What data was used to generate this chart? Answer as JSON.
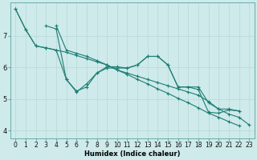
{
  "xlabel": "Humidex (Indice chaleur)",
  "bg_color": "#ceeaea",
  "line_color": "#1e7d74",
  "xlim_min": -0.5,
  "xlim_max": 23.5,
  "ylim_min": 3.75,
  "ylim_max": 8.05,
  "xticks": [
    0,
    1,
    2,
    3,
    4,
    5,
    6,
    7,
    8,
    9,
    10,
    11,
    12,
    13,
    14,
    15,
    16,
    17,
    18,
    19,
    20,
    21,
    22,
    23
  ],
  "yticks": [
    4,
    5,
    6,
    7
  ],
  "lines": [
    [
      7.85,
      7.2,
      6.68,
      6.62,
      6.55,
      6.48,
      6.38,
      6.28,
      6.18,
      6.08,
      5.92,
      5.82,
      5.72,
      5.62,
      5.52,
      5.42,
      5.32,
      5.22,
      5.12,
      4.92,
      4.68,
      4.52,
      4.42,
      4.18
    ],
    [
      7.85,
      7.2,
      6.68,
      6.62,
      6.55,
      5.62,
      5.25,
      5.38,
      5.82,
      6.02,
      6.02,
      5.98,
      6.08,
      6.35,
      6.35,
      6.08,
      5.38,
      5.38,
      5.38,
      4.88,
      4.68,
      4.68,
      4.62,
      null
    ],
    [
      null,
      null,
      null,
      7.32,
      7.22,
      5.62,
      5.22,
      5.48,
      5.82,
      5.98,
      5.98,
      5.98,
      6.08,
      6.35,
      6.35,
      6.08,
      5.38,
      5.38,
      5.3,
      4.58,
      4.55,
      4.65,
      4.62,
      null
    ],
    [
      null,
      null,
      null,
      null,
      7.32,
      6.55,
      6.45,
      6.35,
      6.22,
      6.08,
      5.92,
      5.78,
      5.62,
      5.48,
      5.32,
      5.18,
      5.02,
      4.88,
      4.72,
      4.55,
      4.42,
      4.28,
      4.15,
      null
    ]
  ],
  "tick_fontsize": 5.5,
  "xlabel_fontsize": 6.0
}
